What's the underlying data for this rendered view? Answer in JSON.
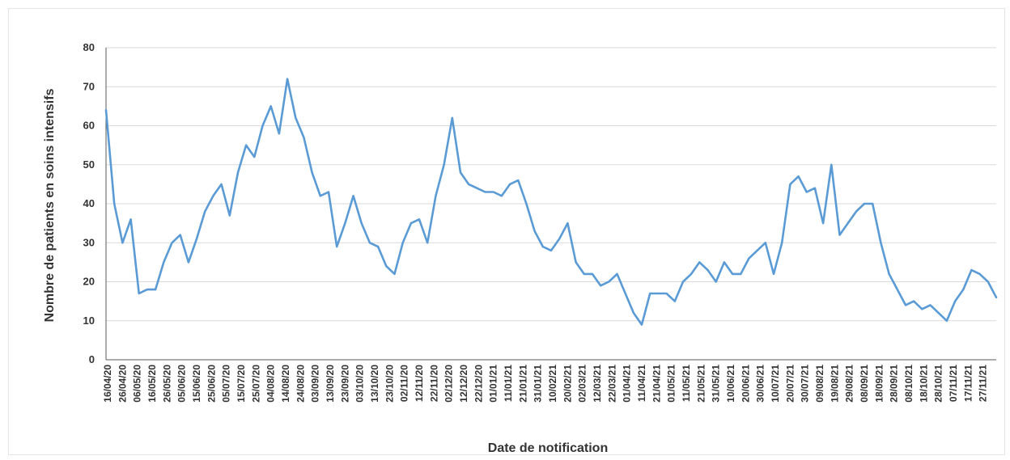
{
  "colors": {
    "series": "#5b9bd5",
    "grid": "#d9d9d9",
    "axis": "#595959",
    "text": "#333333"
  },
  "chart_data": {
    "type": "line",
    "title": "",
    "xlabel": "Date de notification",
    "ylabel": "Nombre de patients en soins intensifs",
    "ylim": [
      0,
      80
    ],
    "yticks": [
      0,
      10,
      20,
      30,
      40,
      50,
      60,
      70,
      80
    ],
    "grid": "horizontal",
    "legend": "none",
    "x_tick_labels": [
      "16/04/20",
      "26/04/20",
      "06/05/20",
      "16/05/20",
      "26/05/20",
      "05/06/20",
      "15/06/20",
      "25/06/20",
      "05/07/20",
      "15/07/20",
      "25/07/20",
      "04/08/20",
      "14/08/20",
      "24/08/20",
      "03/09/20",
      "13/09/20",
      "23/09/20",
      "03/10/20",
      "13/10/20",
      "23/10/20",
      "02/11/20",
      "12/11/20",
      "22/11/20",
      "02/12/20",
      "12/12/20",
      "22/12/20",
      "01/01/21",
      "11/01/21",
      "21/01/21",
      "31/01/21",
      "10/02/21",
      "20/02/21",
      "02/03/21",
      "12/03/21",
      "22/03/21",
      "01/04/21",
      "11/04/21",
      "21/04/21",
      "01/05/21",
      "11/05/21",
      "21/05/21",
      "31/05/21",
      "10/06/21",
      "20/06/21",
      "30/06/21",
      "10/07/21",
      "20/07/21",
      "30/07/21",
      "09/08/21",
      "19/08/21",
      "29/08/21",
      "08/09/21",
      "18/09/21",
      "28/09/21",
      "08/10/21",
      "18/10/21",
      "28/10/21",
      "07/11/21",
      "17/11/21",
      "27/11/21"
    ],
    "series": [
      {
        "start_date": "16/04/20",
        "step_days": 5,
        "values": [
          64,
          40,
          30,
          36,
          17,
          18,
          18,
          25,
          30,
          32,
          25,
          31,
          38,
          42,
          45,
          37,
          48,
          55,
          52,
          60,
          65,
          58,
          72,
          62,
          57,
          48,
          42,
          43,
          29,
          35,
          42,
          35,
          30,
          29,
          24,
          22,
          30,
          35,
          36,
          30,
          42,
          50,
          62,
          48,
          45,
          44,
          43,
          43,
          42,
          45,
          46,
          40,
          33,
          29,
          28,
          31,
          35,
          25,
          22,
          22,
          19,
          20,
          22,
          17,
          12,
          9,
          17,
          17,
          17,
          15,
          20,
          22,
          25,
          23,
          20,
          25,
          22,
          22,
          26,
          28,
          30,
          22,
          30,
          45,
          47,
          43,
          44,
          35,
          50,
          32,
          35,
          38,
          40,
          40,
          30,
          22,
          18,
          14,
          15,
          13,
          14,
          12,
          10,
          15,
          18,
          23,
          22,
          20,
          16
        ]
      }
    ]
  }
}
